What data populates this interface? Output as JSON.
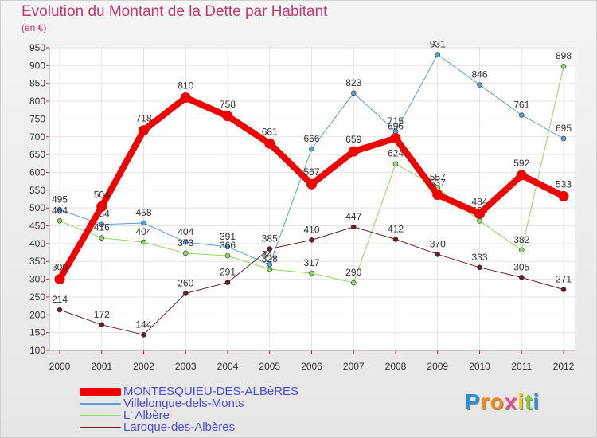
{
  "title": "Evolution du Montant de la Dette par Habitant",
  "unit_label": "(en €)",
  "logo": {
    "letters": [
      "P",
      "r",
      "o",
      "x",
      "i",
      "t",
      "i"
    ],
    "colors": [
      "#2f8fd6",
      "#f08a1c",
      "#f08a1c",
      "#e84c8c",
      "#f6c61b",
      "#8ec63f",
      "#2f8fd6"
    ]
  },
  "chart_data": {
    "type": "line",
    "x": [
      "2000",
      "2001",
      "2002",
      "2003",
      "2004",
      "2005",
      "2006",
      "2007",
      "2008",
      "2009",
      "2010",
      "2011",
      "2012"
    ],
    "y_ticks": [
      "100",
      "150",
      "200",
      "250",
      "300",
      "350",
      "400",
      "450",
      "500",
      "550",
      "600",
      "650",
      "700",
      "750",
      "800",
      "850",
      "900",
      "950"
    ],
    "ylim": [
      100,
      950
    ],
    "grid": true,
    "legend_position": "bottom-left",
    "series": [
      {
        "name": "Villelongue-dels-Monts",
        "color": "#5a9fd4",
        "line_width": 1,
        "values": [
          495,
          454,
          458,
          404,
          391,
          341,
          666,
          823,
          715,
          931,
          846,
          761,
          695
        ],
        "labels": [
          "495",
          "454",
          "458",
          "404",
          "391",
          "341",
          "666",
          "823",
          "715",
          "931",
          "846",
          "761",
          "695"
        ]
      },
      {
        "name": "L' Albère",
        "color": "#90d860",
        "line_width": 1,
        "values": [
          464,
          416,
          404,
          373,
          366,
          328,
          317,
          290,
          624,
          557,
          464,
          382,
          898
        ],
        "labels": [
          "464",
          "416",
          "404",
          "373",
          "366",
          "328",
          "317",
          "290",
          "624",
          "557",
          "464",
          "382",
          "898"
        ]
      },
      {
        "name": "Laroque-des-Albères",
        "color": "#6b1e1e",
        "line_width": 1,
        "values": [
          214,
          172,
          144,
          260,
          291,
          385,
          410,
          447,
          412,
          370,
          333,
          305,
          271
        ],
        "labels": [
          "214",
          "172",
          "144",
          "260",
          "291",
          "385",
          "410",
          "447",
          "412",
          "370",
          "333",
          "305",
          "271"
        ]
      },
      {
        "name": "MONTESQUIEU-DES-ALBèRES",
        "color": "#ee0000",
        "line_width": 8,
        "values": [
          300,
          504,
          718,
          810,
          758,
          681,
          567,
          659,
          696,
          537,
          484,
          592,
          533
        ],
        "labels": [
          "300",
          "504",
          "718",
          "810",
          "758",
          "681",
          "567",
          "659",
          "696",
          "537",
          "484",
          "592",
          "533"
        ]
      }
    ],
    "legend_order": [
      3,
      0,
      1,
      2
    ]
  }
}
